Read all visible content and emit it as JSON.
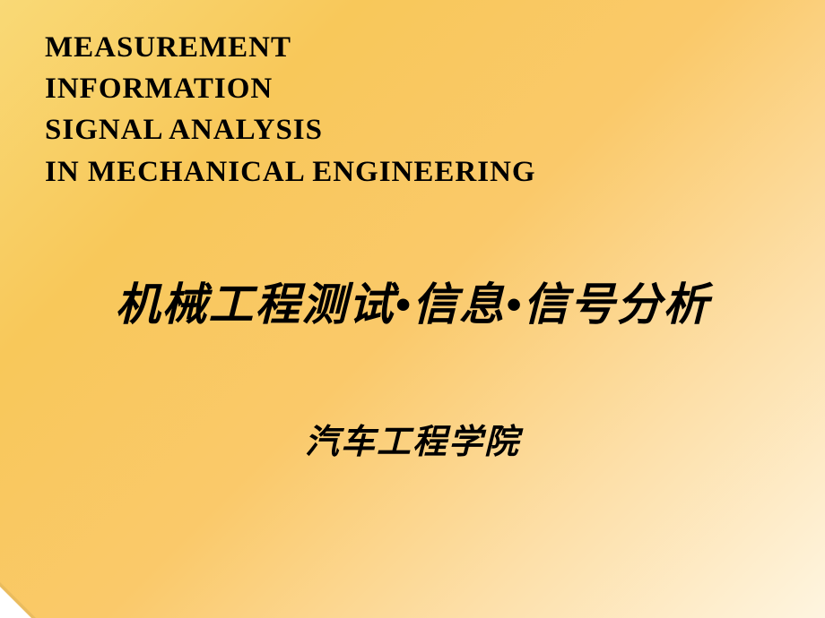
{
  "slide": {
    "english_title_line1": "MEASUREMENT",
    "english_title_line2": "INFORMATION",
    "english_title_line3": "SIGNAL ANALYSIS",
    "english_title_line4": "IN MECHANICAL ENGINEERING",
    "chinese_title": "机械工程测试•信息•信号分析",
    "institution": "汽车工程学院",
    "background_gradient_start": "#f9d976",
    "background_gradient_end": "#fef5e0",
    "text_color": "#000000",
    "english_font_size": 33,
    "chinese_title_font_size": 50,
    "institution_font_size": 38
  }
}
